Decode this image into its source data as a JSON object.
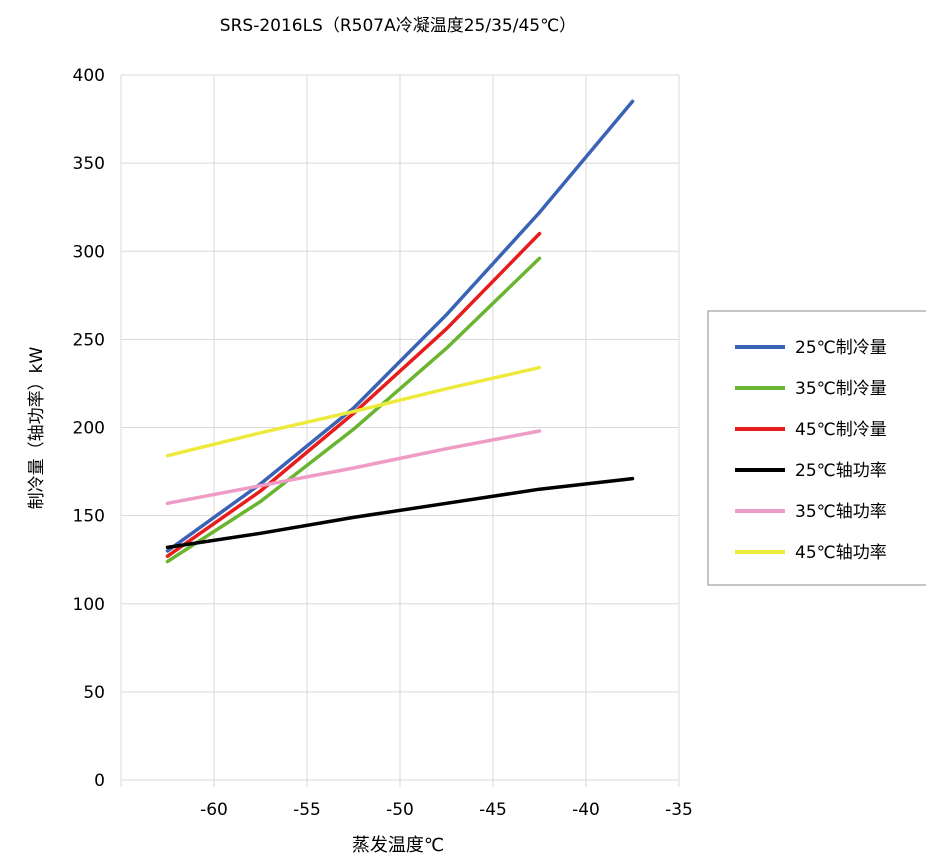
{
  "chart_data": {
    "type": "line",
    "title": "SRS-2016LS（R507A冷凝温度25/35/45℃）",
    "xlabel": "蒸发温度℃",
    "ylabel": "制冷量（轴功率）kW",
    "xlim": [
      -65,
      -35
    ],
    "ylim": [
      0,
      400
    ],
    "xticks": [
      -60,
      -55,
      -50,
      -45,
      -40,
      -35
    ],
    "xtick_labels": [
      "-60",
      "-55",
      "-50",
      "-45",
      "-40",
      "-35"
    ],
    "yticks": [
      0,
      50,
      100,
      150,
      200,
      250,
      300,
      350,
      400
    ],
    "ytick_labels": [
      "0",
      "50",
      "100",
      "150",
      "200",
      "250",
      "300",
      "350",
      "400"
    ],
    "grid": true,
    "legend_position": "right",
    "series": [
      {
        "name": "25℃制冷量",
        "color": "#3a62b5",
        "x": [
          -62.5,
          -57.5,
          -52.5,
          -47.5,
          -42.5,
          -37.5
        ],
        "y": [
          130,
          168,
          211,
          264,
          322,
          385
        ]
      },
      {
        "name": "35℃制冷量",
        "color": "#6ab530",
        "x": [
          -62.5,
          -57.5,
          -52.5,
          -47.5,
          -42.5
        ],
        "y": [
          124,
          158,
          199,
          245,
          296
        ]
      },
      {
        "name": "45℃制冷量",
        "color": "#e81c1c",
        "x": [
          -62.5,
          -57.5,
          -52.5,
          -47.5,
          -42.5
        ],
        "y": [
          127,
          164,
          208,
          256,
          310
        ]
      },
      {
        "name": "25℃轴功率",
        "color": "#000000",
        "x": [
          -62.5,
          -57.5,
          -52.5,
          -47.5,
          -42.5,
          -37.5
        ],
        "y": [
          132,
          140,
          149,
          157,
          165,
          171
        ]
      },
      {
        "name": "35℃轴功率",
        "color": "#ee9cc6",
        "x": [
          -62.5,
          -57.5,
          -52.5,
          -47.5,
          -42.5
        ],
        "y": [
          157,
          167,
          177,
          188,
          198
        ]
      },
      {
        "name": "45℃轴功率",
        "color": "#eeea3c",
        "x": [
          -62.5,
          -57.5,
          -52.5,
          -47.5,
          -42.5
        ],
        "y": [
          184,
          197,
          209,
          222,
          234
        ]
      }
    ]
  }
}
